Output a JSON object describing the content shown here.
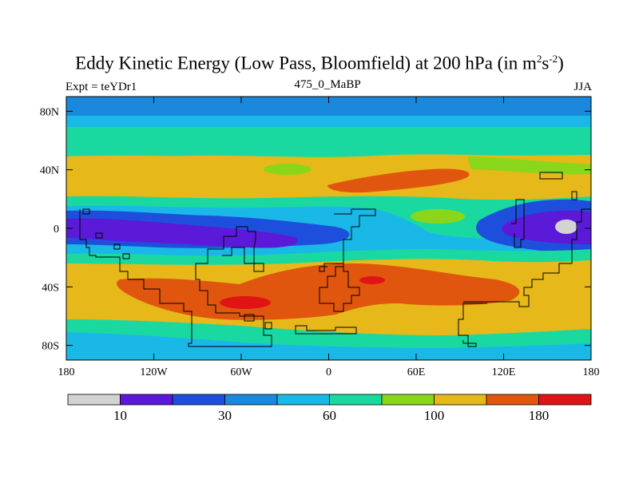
{
  "title": {
    "main": "Eddy Kinetic Energy (Low Pass, Bloomfield) at 200 hPa (in m",
    "sup1": "2",
    "mid": "s",
    "sup2": "-2",
    "end": ")"
  },
  "experiment_label": "Expt = teYDr1",
  "subtitle": "475_0_MaBP",
  "season": "JJA",
  "lat_ticks": [
    "80N",
    "40N",
    "0",
    "40S",
    "80S"
  ],
  "lon_ticks": [
    "180",
    "120W",
    "60W",
    "0",
    "60E",
    "120E",
    "180"
  ],
  "colorbar": {
    "colors": [
      "#d3d3d3",
      "#5a1ad8",
      "#1e4fdc",
      "#1a88dc",
      "#1ab8e6",
      "#1ad9a0",
      "#8ad61a",
      "#e6b81a",
      "#e0560f",
      "#e01414"
    ],
    "labels": [
      {
        "text": "10",
        "boundary": 1
      },
      {
        "text": "30",
        "boundary": 3
      },
      {
        "text": "60",
        "boundary": 5
      },
      {
        "text": "100",
        "boundary": 7
      },
      {
        "text": "180",
        "boundary": 9
      }
    ]
  },
  "colors": {
    "c_gray": "#d3d3d3",
    "c_purple": "#5a1ad8",
    "c_blue": "#1e4fdc",
    "c_mid_blue": "#1a88dc",
    "c_cyan": "#1ab8e6",
    "c_teal": "#1ad9a0",
    "c_green": "#8ad61a",
    "c_yellow": "#e6b81a",
    "c_orange": "#e0560f",
    "c_red": "#e01414"
  }
}
